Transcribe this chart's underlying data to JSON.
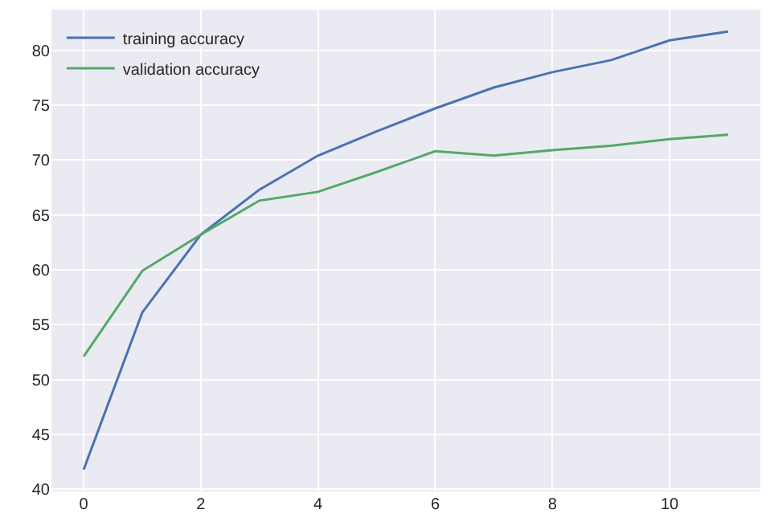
{
  "chart_data": {
    "type": "line",
    "x": [
      0,
      1,
      2,
      3,
      4,
      5,
      6,
      7,
      8,
      9,
      10,
      11
    ],
    "series": [
      {
        "name": "training accuracy",
        "color": "#4c72b0",
        "values": [
          41.8,
          56.1,
          63.2,
          67.3,
          70.4,
          72.6,
          74.7,
          76.6,
          78.0,
          79.1,
          80.9,
          81.7
        ]
      },
      {
        "name": "validation accuracy",
        "color": "#55a868",
        "values": [
          52.1,
          59.9,
          63.2,
          66.3,
          67.1,
          68.9,
          70.8,
          70.4,
          70.9,
          71.3,
          71.9,
          72.3
        ]
      }
    ],
    "xlim": [
      -0.55,
      11.55
    ],
    "ylim": [
      39.8,
      83.7
    ],
    "xticks": [
      0,
      2,
      4,
      6,
      8,
      10
    ],
    "yticks": [
      40,
      45,
      50,
      55,
      60,
      65,
      70,
      75,
      80
    ],
    "grid": true,
    "legend": "top left",
    "marker": "none",
    "line_style": "solid"
  }
}
